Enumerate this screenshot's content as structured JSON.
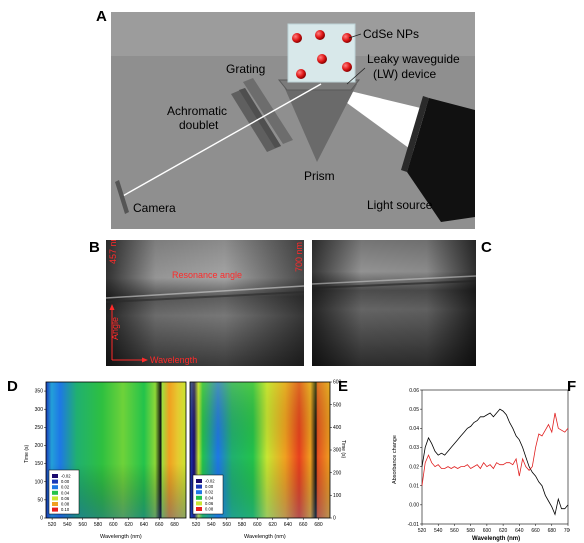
{
  "panels": {
    "A": "A",
    "B": "B",
    "C": "C",
    "D": "D",
    "E": "E",
    "F": "F"
  },
  "panel_a": {
    "cdse_label": "CdSe NPs",
    "grating_label": "Grating",
    "lw_label_line1": "Leaky waveguide",
    "lw_label_line2": "(LW) device",
    "doublet_line1": "Achromatic",
    "doublet_line2": "doublet",
    "prism_label": "Prism",
    "camera_label": "Camera",
    "light_label": "Light source"
  },
  "panel_b": {
    "left_wavelength": "457 nm",
    "right_wavelength": "700 nm",
    "resonance_label": "Resonance angle",
    "angle_label": "Angle",
    "wavelength_label": "Wavelength"
  },
  "panel_d": {
    "ylabel": "Time (s)",
    "xlabel": "Wavelength (nm)",
    "yticks": [
      "0",
      "50",
      "100",
      "150",
      "200",
      "250",
      "300",
      "350"
    ],
    "xticks": [
      "520",
      "540",
      "560",
      "580",
      "600",
      "620",
      "640",
      "660",
      "680"
    ],
    "legend": [
      "-0.02",
      "0.00",
      "0.02",
      "0.04",
      "0.06",
      "0.08",
      "0.10"
    ],
    "legend_colors": [
      "#1a0a6e",
      "#1a3ab8",
      "#1e78e6",
      "#23c34b",
      "#c8e632",
      "#f0a020",
      "#e61e1e"
    ]
  },
  "panel_e": {
    "ylabel": "Time (s)",
    "xlabel": "Wavelength (nm)",
    "yticks": [
      "0",
      "100",
      "200",
      "300",
      "400",
      "500",
      "600"
    ],
    "xticks": [
      "520",
      "540",
      "560",
      "580",
      "600",
      "620",
      "640",
      "660",
      "680"
    ],
    "legend": [
      "-0.02",
      "0.00",
      "0.02",
      "0.04",
      "0.06",
      "0.08"
    ],
    "legend_colors": [
      "#1a0a6e",
      "#1a3ab8",
      "#1e78e6",
      "#23c34b",
      "#c8e632",
      "#e61e1e"
    ]
  },
  "chart_data": {
    "type": "line",
    "title": "",
    "xlabel": "Wavelength (nm)",
    "ylabel": "Absorbance change",
    "xlim": [
      520,
      700
    ],
    "ylim": [
      -0.01,
      0.06
    ],
    "xticks": [
      "520",
      "540",
      "560",
      "580",
      "600",
      "620",
      "640",
      "660",
      "680",
      "700"
    ],
    "yticks": [
      "-0.01",
      "0.00",
      "0.01",
      "0.02",
      "0.03",
      "0.04",
      "0.05",
      "0.06"
    ],
    "series": [
      {
        "color": "#000000",
        "x": [
          520,
          524,
          528,
          532,
          536,
          540,
          544,
          548,
          552,
          556,
          560,
          564,
          568,
          572,
          576,
          580,
          584,
          588,
          592,
          596,
          600,
          604,
          608,
          612,
          616,
          620,
          624,
          628,
          632,
          636,
          640,
          644,
          648,
          652,
          656,
          660,
          664,
          668,
          672,
          676,
          680,
          684,
          688,
          692,
          696,
          700
        ],
        "y": [
          0.02,
          0.03,
          0.035,
          0.032,
          0.028,
          0.026,
          0.027,
          0.026,
          0.028,
          0.03,
          0.032,
          0.034,
          0.036,
          0.038,
          0.04,
          0.041,
          0.043,
          0.044,
          0.046,
          0.046,
          0.047,
          0.048,
          0.046,
          0.048,
          0.05,
          0.049,
          0.047,
          0.043,
          0.04,
          0.036,
          0.034,
          0.03,
          0.025,
          0.02,
          0.017,
          0.015,
          0.012,
          0.01,
          0.005,
          0.002,
          -0.001,
          -0.005,
          0.003,
          -0.002,
          -0.002,
          0.0
        ]
      },
      {
        "color": "#e02020",
        "x": [
          520,
          524,
          528,
          532,
          536,
          540,
          544,
          548,
          552,
          556,
          560,
          564,
          568,
          572,
          576,
          580,
          584,
          588,
          592,
          596,
          600,
          604,
          608,
          612,
          616,
          620,
          624,
          628,
          632,
          636,
          640,
          644,
          648,
          652,
          656,
          660,
          664,
          668,
          672,
          676,
          680,
          684,
          688,
          692,
          696,
          700
        ],
        "y": [
          0.01,
          0.022,
          0.026,
          0.022,
          0.02,
          0.021,
          0.019,
          0.019,
          0.02,
          0.019,
          0.02,
          0.019,
          0.02,
          0.02,
          0.021,
          0.019,
          0.02,
          0.021,
          0.019,
          0.022,
          0.02,
          0.021,
          0.019,
          0.022,
          0.021,
          0.021,
          0.022,
          0.022,
          0.021,
          0.024,
          0.015,
          0.024,
          0.02,
          0.018,
          0.02,
          0.03,
          0.037,
          0.036,
          0.039,
          0.042,
          0.038,
          0.048,
          0.04,
          0.039,
          0.038,
          0.04
        ]
      }
    ]
  }
}
